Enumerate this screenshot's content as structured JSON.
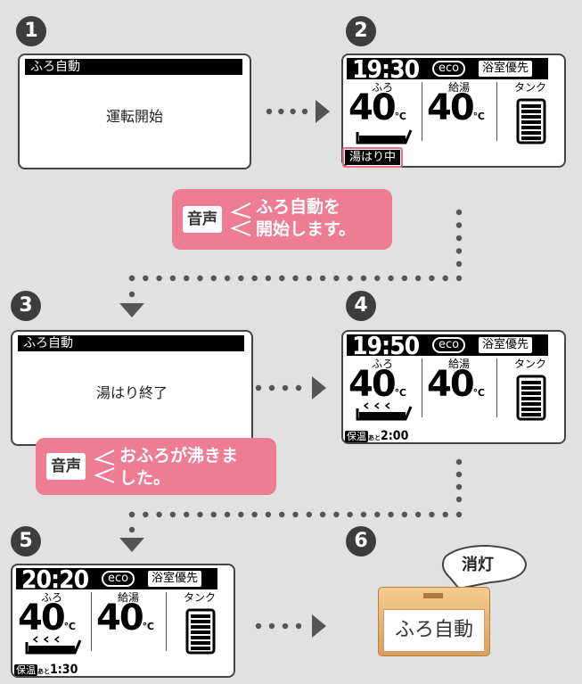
{
  "step_numbers": [
    "1",
    "2",
    "3",
    "4",
    "5",
    "6"
  ],
  "message_screens": [
    {
      "header": "ふろ自動",
      "message": "運転開始"
    },
    {
      "header": "ふろ自動",
      "message": "湯はり終了"
    }
  ],
  "status_screens": [
    {
      "time": "19:30",
      "eco": "eco",
      "priority": "浴室優先",
      "labels": [
        "ふろ",
        "給湯",
        "タンク"
      ],
      "temperatures": [
        "40",
        "40"
      ],
      "unit": "℃",
      "status": "湯はり中"
    },
    {
      "time": "19:50",
      "eco": "eco",
      "priority": "浴室優先",
      "labels": [
        "ふろ",
        "給湯",
        "タンク"
      ],
      "temperatures": [
        "40",
        "40"
      ],
      "unit": "℃",
      "status": "保温",
      "remaining_prefix": "あと",
      "remaining": "2:00"
    },
    {
      "time": "20:20",
      "eco": "eco",
      "priority": "浴室優先",
      "labels": [
        "ふろ",
        "給湯",
        "タンク"
      ],
      "temperatures": [
        "40",
        "40"
      ],
      "unit": "℃",
      "status": "保温",
      "remaining_prefix": "あと",
      "remaining": "1:30"
    }
  ],
  "voice_messages": [
    {
      "tag": "音声",
      "lines": [
        "ふろ自動を",
        "開始します。"
      ]
    },
    {
      "tag": "音声",
      "lines": [
        "おふろが沸きま",
        "した。"
      ]
    }
  ],
  "lamp": {
    "callout": "消灯",
    "label": "ふろ自動"
  }
}
